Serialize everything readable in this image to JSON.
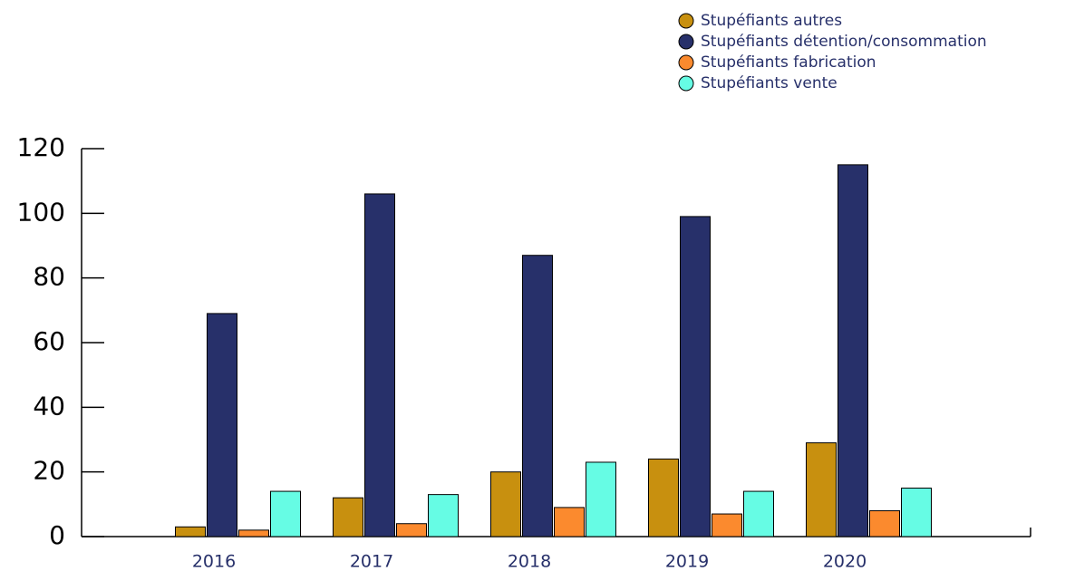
{
  "chart_data": {
    "type": "bar",
    "categories": [
      "2016",
      "2017",
      "2018",
      "2019",
      "2020"
    ],
    "series": [
      {
        "name": "Stupéfiants autres",
        "color": "#c8900f",
        "values": [
          3,
          12,
          20,
          24,
          29
        ]
      },
      {
        "name": "Stupéfiants détention/consommation",
        "color": "#27306a",
        "values": [
          69,
          106,
          87,
          99,
          115
        ]
      },
      {
        "name": "Stupéfiants fabrication",
        "color": "#fb8a2e",
        "values": [
          2,
          4,
          9,
          7,
          8
        ]
      },
      {
        "name": "Stupéfiants vente",
        "color": "#66fce4",
        "values": [
          14,
          13,
          23,
          14,
          15
        ]
      }
    ],
    "ylim": [
      0,
      120
    ],
    "yticks": [
      0,
      20,
      40,
      60,
      80,
      100,
      120
    ],
    "legend": "top-right"
  }
}
